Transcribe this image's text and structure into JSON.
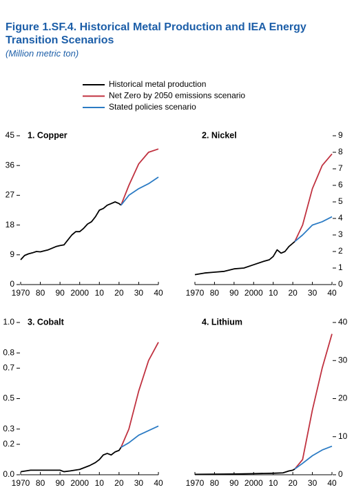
{
  "title": "Figure 1.SF.4.  Historical Metal Production and IEA Energy Transition Scenarios",
  "subtitle": "(Million metric ton)",
  "chart_data": [
    {
      "type": "line",
      "title": "1. Copper",
      "yaxis": "left",
      "xlim": [
        1970,
        2040
      ],
      "xticks": [
        1970,
        {
          "value": 1980,
          "label": "80"
        },
        {
          "value": 1990,
          "label": "90"
        },
        2000,
        {
          "value": 2010,
          "label": "10"
        },
        {
          "value": 2020,
          "label": "20"
        },
        {
          "value": 2030,
          "label": "30"
        },
        {
          "value": 2040,
          "label": "40"
        }
      ],
      "ylim": [
        0,
        45
      ],
      "yticks": [
        0,
        9,
        18,
        27,
        36,
        45
      ],
      "series": [
        {
          "name": "Historical metal production",
          "color": "#000000",
          "x": [
            1970,
            1972,
            1974,
            1976,
            1978,
            1980,
            1982,
            1984,
            1986,
            1988,
            1990,
            1992,
            1994,
            1996,
            1998,
            2000,
            2002,
            2004,
            2006,
            2008,
            2010,
            2012,
            2014,
            2016,
            2018,
            2020,
            2021
          ],
          "values": [
            7.5,
            8.8,
            9.3,
            9.6,
            10.0,
            9.9,
            10.2,
            10.5,
            11.0,
            11.5,
            11.8,
            12.0,
            13.5,
            15.0,
            16.0,
            16.0,
            17.0,
            18.3,
            19.0,
            20.5,
            22.5,
            23.0,
            24.0,
            24.5,
            25.0,
            24.5,
            24.0
          ]
        },
        {
          "name": "Net Zero by 2050 emissions scenario",
          "color": "#c0313f",
          "x": [
            2021,
            2025,
            2030,
            2035,
            2040
          ],
          "values": [
            24.0,
            30.0,
            36.5,
            40.0,
            41.0
          ]
        },
        {
          "name": "Stated policies scenario",
          "color": "#2b7bc4",
          "x": [
            2021,
            2025,
            2030,
            2035,
            2040
          ],
          "values": [
            24.0,
            27.0,
            29.0,
            30.5,
            32.5
          ]
        }
      ]
    },
    {
      "type": "line",
      "title": "2. Nickel",
      "yaxis": "right",
      "xlim": [
        1970,
        2040
      ],
      "xticks": [
        1970,
        {
          "value": 1980,
          "label": "80"
        },
        {
          "value": 1990,
          "label": "90"
        },
        2000,
        {
          "value": 2010,
          "label": "10"
        },
        {
          "value": 2020,
          "label": "20"
        },
        {
          "value": 2030,
          "label": "30"
        },
        {
          "value": 2040,
          "label": "40"
        }
      ],
      "ylim": [
        0,
        9
      ],
      "yticks": [
        0,
        1,
        2,
        3,
        4,
        5,
        6,
        7,
        8,
        9
      ],
      "series": [
        {
          "name": "Historical metal production",
          "color": "#000000",
          "x": [
            1970,
            1975,
            1980,
            1985,
            1990,
            1995,
            2000,
            2005,
            2008,
            2010,
            2012,
            2014,
            2016,
            2018,
            2020,
            2021
          ],
          "values": [
            0.6,
            0.7,
            0.75,
            0.8,
            0.95,
            1.0,
            1.2,
            1.4,
            1.5,
            1.7,
            2.1,
            1.9,
            2.0,
            2.3,
            2.5,
            2.6
          ]
        },
        {
          "name": "Net Zero by 2050 emissions scenario",
          "color": "#c0313f",
          "x": [
            2021,
            2025,
            2030,
            2035,
            2040
          ],
          "values": [
            2.6,
            3.6,
            5.8,
            7.2,
            7.9
          ]
        },
        {
          "name": "Stated policies scenario",
          "color": "#2b7bc4",
          "x": [
            2021,
            2025,
            2030,
            2035,
            2040
          ],
          "values": [
            2.6,
            3.0,
            3.6,
            3.8,
            4.1
          ]
        }
      ]
    },
    {
      "type": "line",
      "title": "3. Cobalt",
      "yaxis": "left",
      "xlim": [
        1970,
        2040
      ],
      "xticks": [
        1970,
        {
          "value": 1980,
          "label": "80"
        },
        {
          "value": 1990,
          "label": "90"
        },
        2000,
        {
          "value": 2010,
          "label": "10"
        },
        {
          "value": 2020,
          "label": "20"
        },
        {
          "value": 2030,
          "label": "30"
        },
        {
          "value": 2040,
          "label": "40"
        }
      ],
      "ylim": [
        0,
        1
      ],
      "yticks": [
        {
          "value": 0,
          "label": "0.0"
        },
        0.2,
        0.3,
        0.5,
        0.7,
        0.8,
        {
          "value": 1,
          "label": "1.0"
        }
      ],
      "series": [
        {
          "name": "Historical metal production",
          "color": "#000000",
          "x": [
            1970,
            1975,
            1980,
            1985,
            1990,
            1992,
            1995,
            2000,
            2005,
            2008,
            2010,
            2012,
            2014,
            2016,
            2018,
            2020,
            2021
          ],
          "values": [
            0.02,
            0.03,
            0.03,
            0.03,
            0.03,
            0.02,
            0.025,
            0.035,
            0.06,
            0.08,
            0.1,
            0.13,
            0.14,
            0.13,
            0.15,
            0.16,
            0.18
          ]
        },
        {
          "name": "Net Zero by 2050 emissions scenario",
          "color": "#c0313f",
          "x": [
            2021,
            2025,
            2030,
            2035,
            2040
          ],
          "values": [
            0.18,
            0.3,
            0.55,
            0.75,
            0.87
          ]
        },
        {
          "name": "Stated policies scenario",
          "color": "#2b7bc4",
          "x": [
            2021,
            2025,
            2030,
            2035,
            2040
          ],
          "values": [
            0.18,
            0.21,
            0.26,
            0.29,
            0.32
          ]
        }
      ]
    },
    {
      "type": "line",
      "title": "4. Lithium",
      "yaxis": "right",
      "xlim": [
        1970,
        2040
      ],
      "xticks": [
        1970,
        {
          "value": 1980,
          "label": "80"
        },
        {
          "value": 1990,
          "label": "90"
        },
        2000,
        {
          "value": 2010,
          "label": "10"
        },
        {
          "value": 2020,
          "label": "20"
        },
        {
          "value": 2030,
          "label": "30"
        },
        {
          "value": 2040,
          "label": "40"
        }
      ],
      "ylim": [
        0,
        40
      ],
      "yticks": [
        0,
        10,
        20,
        30,
        40
      ],
      "series": [
        {
          "name": "Historical metal production",
          "color": "#000000",
          "x": [
            1970,
            1980,
            1990,
            2000,
            2010,
            2015,
            2018,
            2020,
            2021
          ],
          "values": [
            0.1,
            0.15,
            0.2,
            0.3,
            0.4,
            0.5,
            1.0,
            1.2,
            1.5
          ]
        },
        {
          "name": "Net Zero by 2050 emissions scenario",
          "color": "#c0313f",
          "x": [
            2021,
            2025,
            2030,
            2035,
            2040
          ],
          "values": [
            1.5,
            4,
            17,
            28,
            37
          ]
        },
        {
          "name": "Stated policies scenario",
          "color": "#2b7bc4",
          "x": [
            2021,
            2025,
            2030,
            2035,
            2040
          ],
          "values": [
            1.5,
            3,
            5,
            6.5,
            7.5
          ]
        }
      ]
    }
  ]
}
